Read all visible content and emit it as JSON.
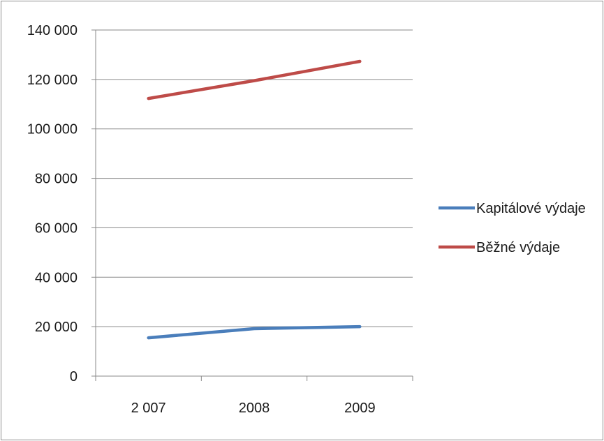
{
  "chart_data": {
    "type": "line",
    "categories": [
      "2 007",
      "2008",
      "2009"
    ],
    "series": [
      {
        "name": "Kapitálové výdaje",
        "values": [
          15500,
          19200,
          20000
        ],
        "color": "#4a7ebb"
      },
      {
        "name": "Běžné výdaje",
        "values": [
          112300,
          119500,
          127300
        ],
        "color": "#be4b48"
      }
    ],
    "y_ticks": [
      "0",
      "20 000",
      "40 000",
      "60 000",
      "80 000",
      "100 000",
      "120 000",
      "140 000"
    ],
    "ylim": [
      0,
      140000
    ],
    "grid": true,
    "legend_position": "right"
  }
}
